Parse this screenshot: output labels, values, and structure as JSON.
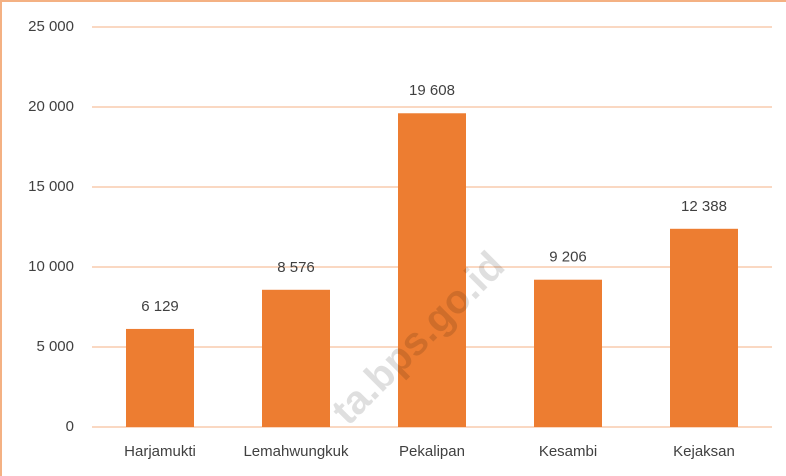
{
  "chart_data": {
    "type": "bar",
    "categories": [
      "Harjamukti",
      "Lemahwungkuk",
      "Pekalipan",
      "Kesambi",
      "Kejaksan"
    ],
    "values": [
      6129,
      8576,
      19608,
      9206,
      12388
    ],
    "value_labels": [
      "6 129",
      "8 576",
      "19 608",
      "9 206",
      "12 388"
    ],
    "color": "#ed7d31",
    "ylim": [
      0,
      25000
    ],
    "yticks": [
      0,
      {
        "value": 5000,
        "label": "5 000"
      },
      {
        "value": 10000,
        "label": "10 000"
      },
      {
        "value": 15000,
        "label": "15 000"
      },
      {
        "value": 20000,
        "label": "20 000"
      },
      {
        "value": 25000,
        "label": "25 000"
      }
    ],
    "grid": true,
    "watermark": "ta.bps.go.id"
  }
}
